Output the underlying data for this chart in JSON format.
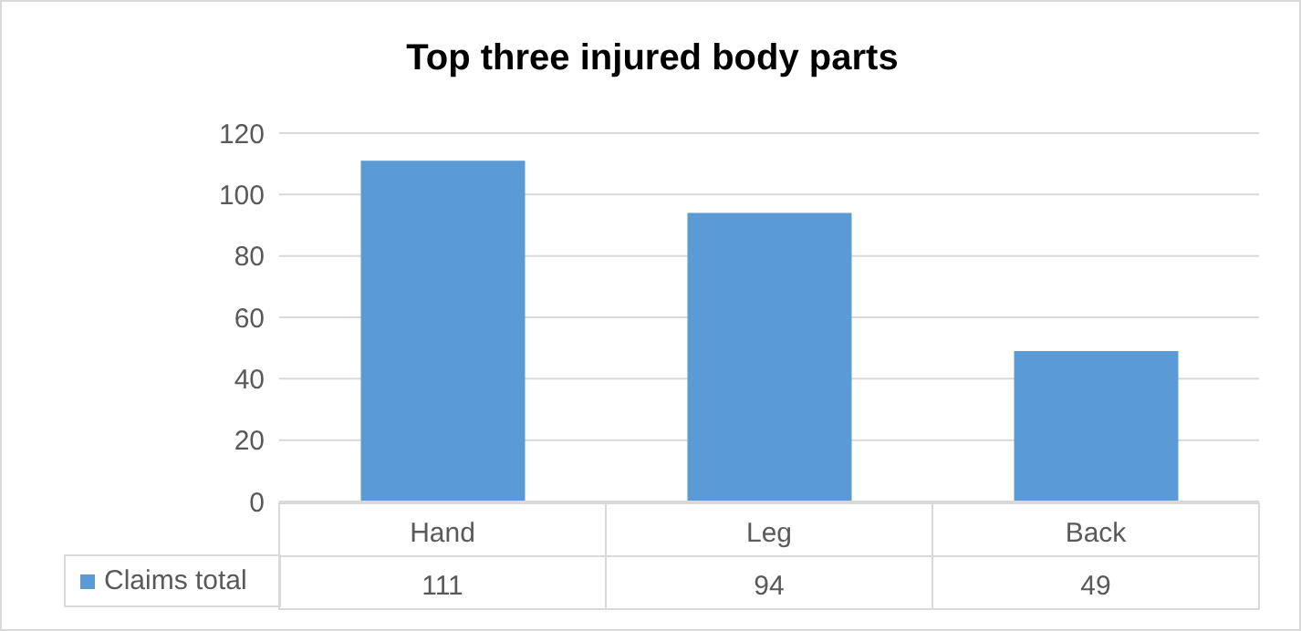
{
  "chart_data": {
    "type": "bar",
    "title": "Top three injured body parts",
    "categories": [
      "Hand",
      "Leg",
      "Back"
    ],
    "series": [
      {
        "name": "Claims total",
        "color": "#5b9bd5",
        "values": [
          111,
          94,
          49
        ]
      }
    ],
    "ylim": [
      0,
      120
    ],
    "yticks": [
      0,
      20,
      40,
      60,
      80,
      100,
      120
    ],
    "grid": "y",
    "legend": "bottom",
    "data_labels": true
  }
}
